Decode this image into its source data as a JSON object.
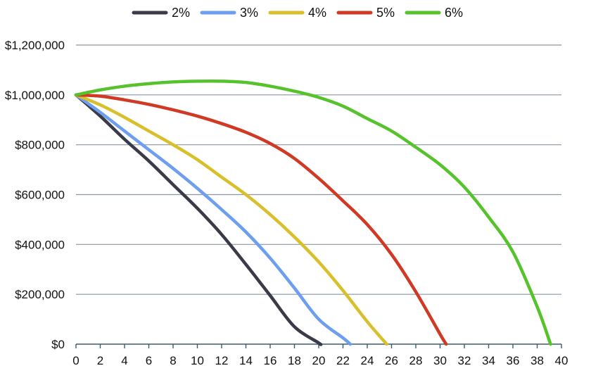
{
  "chart_data": {
    "type": "line",
    "title": "",
    "xlabel": "",
    "ylabel": "",
    "xlim": [
      0,
      40
    ],
    "ylim": [
      0,
      1200000
    ],
    "x_ticks": [
      0,
      2,
      4,
      6,
      8,
      10,
      12,
      14,
      16,
      18,
      20,
      22,
      24,
      26,
      28,
      30,
      32,
      34,
      36,
      38,
      40
    ],
    "x_tick_labels": [
      "0",
      "2",
      "4",
      "6",
      "8",
      "10",
      "12",
      "14",
      "16",
      "18",
      "20",
      "22",
      "24",
      "26",
      "28",
      "30",
      "32",
      "34",
      "36",
      "38",
      "40"
    ],
    "y_ticks": [
      0,
      200000,
      400000,
      600000,
      800000,
      1000000,
      1200000
    ],
    "y_tick_labels": [
      "$0",
      "$200,000",
      "$400,000",
      "$600,000",
      "$800,000",
      "$1,000,000",
      "$1,200,000"
    ],
    "grid": "horizontal",
    "legend_position": "top",
    "series": [
      {
        "name": "2%",
        "color": "#3a3a48",
        "x": [
          0,
          2,
          4,
          6,
          8,
          10,
          12,
          14,
          16,
          18,
          20,
          20.1
        ],
        "y": [
          1000000,
          915000,
          822000,
          735000,
          640000,
          545000,
          440000,
          320000,
          195000,
          70000,
          5000,
          0
        ]
      },
      {
        "name": "3%",
        "color": "#6d9eef",
        "x": [
          0,
          2,
          4,
          6,
          8,
          10,
          12,
          14,
          16,
          18,
          20,
          22,
          22.6
        ],
        "y": [
          1000000,
          930000,
          855000,
          780000,
          705000,
          625000,
          540000,
          450000,
          345000,
          225000,
          100000,
          25000,
          0
        ]
      },
      {
        "name": "4%",
        "color": "#d9bf2a",
        "x": [
          0,
          2,
          4,
          6,
          8,
          10,
          12,
          14,
          16,
          18,
          20,
          22,
          24,
          25.6
        ],
        "y": [
          1000000,
          960000,
          910000,
          855000,
          800000,
          740000,
          670000,
          600000,
          520000,
          430000,
          330000,
          215000,
          90000,
          0
        ]
      },
      {
        "name": "5%",
        "color": "#d03a24",
        "x": [
          0,
          2,
          4,
          6,
          8,
          10,
          12,
          14,
          16,
          18,
          20,
          22,
          24,
          26,
          28,
          30,
          30.5
        ],
        "y": [
          1000000,
          995000,
          980000,
          962000,
          940000,
          915000,
          885000,
          850000,
          805000,
          745000,
          665000,
          575000,
          480000,
          360000,
          210000,
          40000,
          0
        ]
      },
      {
        "name": "6%",
        "color": "#56c22c",
        "x": [
          0,
          2,
          4,
          6,
          8,
          10,
          12,
          14,
          16,
          18,
          20,
          22,
          24,
          26,
          28,
          30,
          32,
          34,
          36,
          38,
          39.1
        ],
        "y": [
          1000000,
          1020000,
          1035000,
          1045000,
          1052000,
          1055000,
          1055000,
          1050000,
          1035000,
          1015000,
          990000,
          955000,
          905000,
          855000,
          790000,
          720000,
          630000,
          510000,
          370000,
          150000,
          0
        ]
      }
    ]
  }
}
